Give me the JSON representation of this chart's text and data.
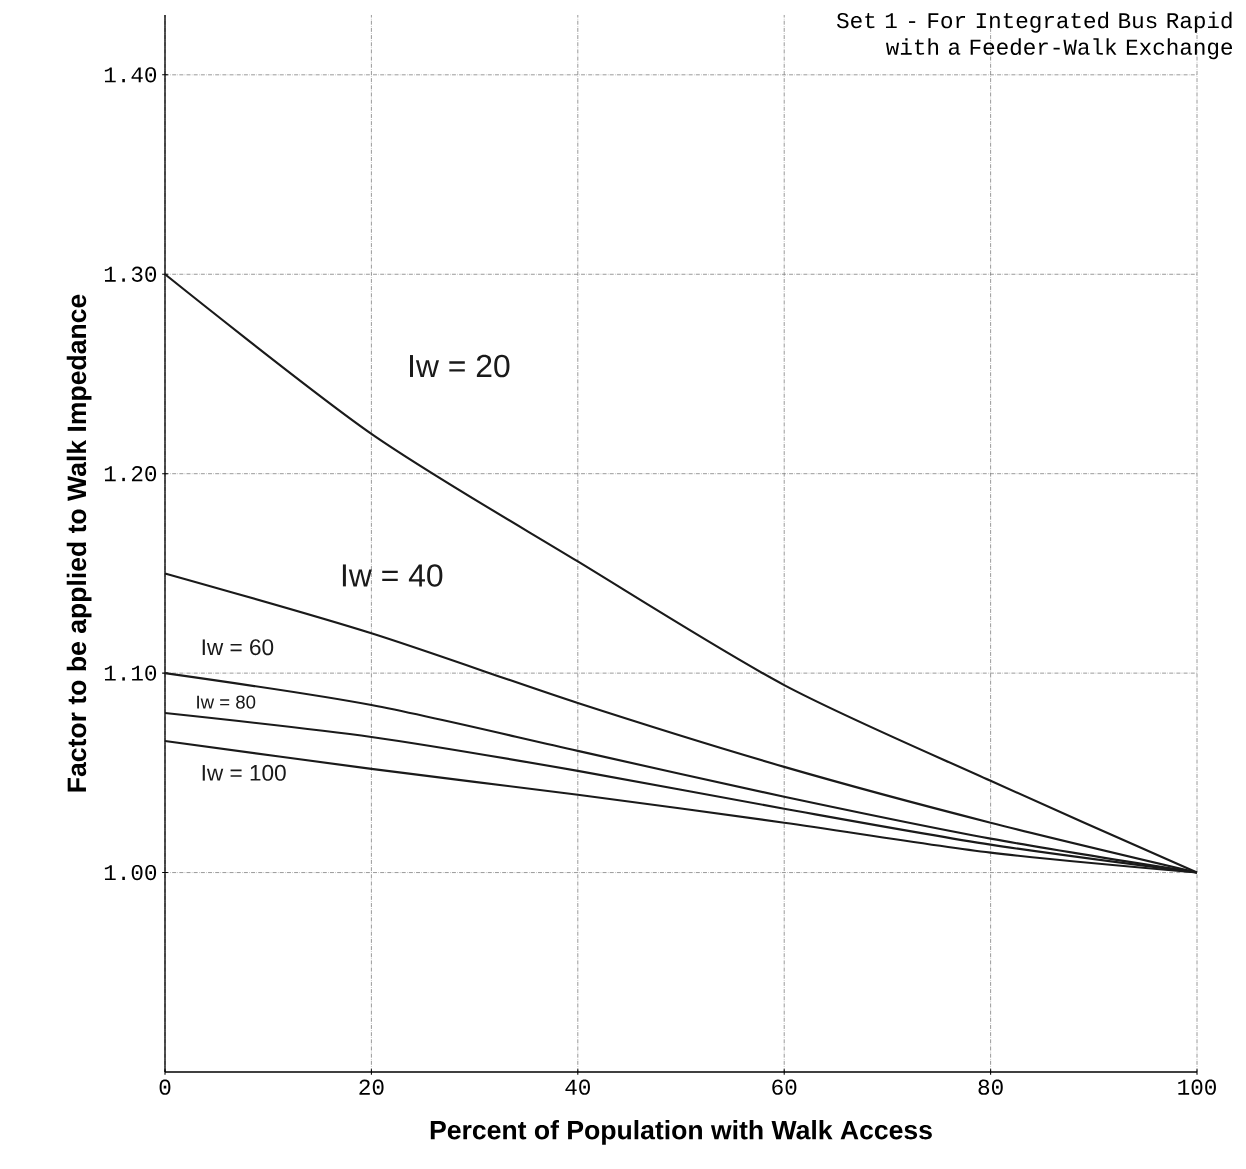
{
  "chart_data": {
    "type": "line",
    "title": "Set 1 - For Integrated Bus Rapid with a Feeder-Walk Exchange",
    "xlabel": "Percent of Population with Walk Access",
    "ylabel": "Factor to be applied to Walk Impedance",
    "x": [
      0,
      20,
      40,
      60,
      80,
      100
    ],
    "series": [
      {
        "name": "Iw = 20",
        "color": "#1a1a1a",
        "values": [
          1.3,
          1.22,
          1.156,
          1.094,
          1.046,
          1.0
        ]
      },
      {
        "name": "Iw = 40",
        "color": "#1a1a1a",
        "values": [
          1.15,
          1.12,
          1.085,
          1.053,
          1.025,
          1.0
        ]
      },
      {
        "name": "Iw = 60",
        "color": "#1a1a1a",
        "values": [
          1.1,
          1.084,
          1.061,
          1.038,
          1.017,
          1.0
        ]
      },
      {
        "name": "Iw = 80",
        "color": "#1a1a1a",
        "values": [
          1.08,
          1.068,
          1.051,
          1.032,
          1.014,
          1.0
        ]
      },
      {
        "name": "Iw = 100",
        "color": "#1a1a1a",
        "values": [
          1.066,
          1.052,
          1.039,
          1.025,
          1.01,
          1.0
        ]
      }
    ],
    "xlim": [
      0,
      100
    ],
    "ylim": [
      0.9,
      1.43
    ],
    "xticks": [
      0,
      20,
      40,
      60,
      80,
      100
    ],
    "yticks": [
      {
        "value": 1.0,
        "label": "1.00"
      },
      {
        "value": 1.1,
        "label": "1.10"
      },
      {
        "value": 1.2,
        "label": "1.20"
      },
      {
        "value": 1.3,
        "label": "1.30"
      },
      {
        "value": 1.4,
        "label": "1.40"
      }
    ],
    "grid": true,
    "line_style": "solid",
    "marker": "none"
  }
}
